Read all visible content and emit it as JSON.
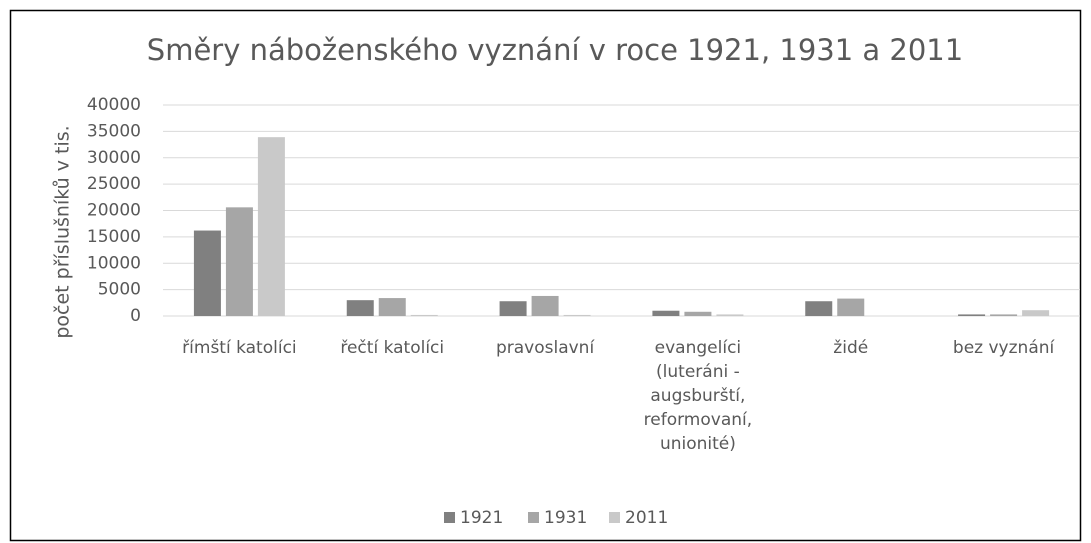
{
  "chart_data": {
    "type": "bar",
    "title": "Směry náboženského vyznání v roce 1921, 1931 a 2011",
    "y_label": "počet příslušníků v tis.",
    "categories": [
      "římští katolíci",
      "řečtí katolíci",
      "pravoslavní",
      "evangelíci (luteráni - augsburští, reformovaní, unionité)",
      "židé",
      "bez vyznání"
    ],
    "series": [
      {
        "name": "1921",
        "color": "#808080",
        "values": [
          16200,
          3000,
          2800,
          1000,
          2800,
          300
        ]
      },
      {
        "name": "1931",
        "color": "#a6a6a6",
        "values": [
          20600,
          3400,
          3800,
          800,
          3300,
          300
        ]
      },
      {
        "name": "2011",
        "color": "#c9c9c9",
        "values": [
          33900,
          200,
          200,
          300,
          0,
          1100
        ]
      }
    ],
    "ylim": [
      0,
      40000
    ],
    "yticks": [
      0,
      5000,
      10000,
      15000,
      20000,
      25000,
      30000,
      35000,
      40000
    ],
    "grid": true,
    "legend": "bottom"
  }
}
